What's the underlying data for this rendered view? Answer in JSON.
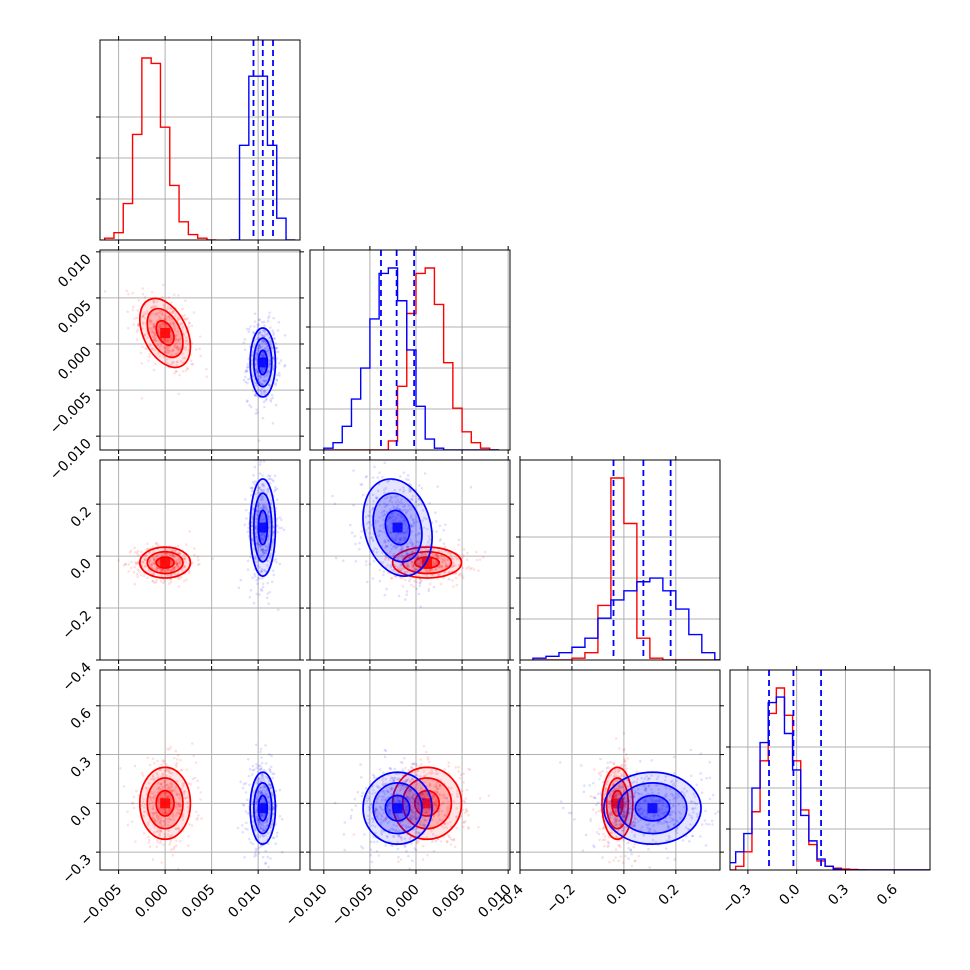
{
  "chart_data": {
    "type": "corner",
    "title": "",
    "colors": {
      "series_a": "#ff0000",
      "series_b": "#0000ff",
      "grid": "#b0b0b0",
      "quantile_line": "#0000ff"
    },
    "series": [
      {
        "name": "red",
        "color": "#ff0000"
      },
      {
        "name": "blue",
        "color": "#0000ff"
      }
    ],
    "parameters": [
      {
        "name": "param_0",
        "range": [
          -0.007,
          0.0145
        ],
        "ticks": [
          -0.005,
          0.0,
          0.005,
          0.01
        ],
        "tick_labels": [
          "−0.005",
          "0.000",
          "0.005",
          "0.010"
        ],
        "hist_bins": [
          -0.006,
          -0.005,
          -0.004,
          -0.003,
          -0.002,
          -0.001,
          0.0,
          0.001,
          0.002,
          0.003,
          0.004,
          0.005
        ],
        "hist_red": [
          0.01,
          0.04,
          0.2,
          0.58,
          1.0,
          0.97,
          0.62,
          0.3,
          0.1,
          0.03,
          0.01,
          0.0
        ],
        "hist_blue_bins": [
          0.0075,
          0.0085,
          0.0095,
          0.0105,
          0.0115,
          0.0125,
          0.0135
        ],
        "hist_blue": [
          0.0,
          0.52,
          0.9,
          0.9,
          0.52,
          0.12,
          0.0
        ],
        "quantiles": [
          0.0095,
          0.0105,
          0.0116
        ]
      },
      {
        "name": "param_1",
        "range": [
          -0.0115,
          0.0102
        ],
        "ticks": [
          -0.01,
          -0.005,
          0.0,
          0.005,
          0.01
        ],
        "tick_labels": [
          "−0.010",
          "−0.005",
          "0.000",
          "0.005",
          "0.010"
        ],
        "hist_bins": [
          -0.0095,
          -0.0085,
          -0.0075,
          -0.0065,
          -0.0055,
          -0.0045,
          -0.0035,
          -0.0025,
          -0.0015,
          -0.0005,
          0.0005,
          0.0015,
          0.0025,
          0.0035,
          0.0045,
          0.0055,
          0.0065,
          0.0075,
          0.0085
        ],
        "hist_red": [
          0.0,
          0.0,
          0.0,
          0.0,
          0.0,
          0.0,
          0.0,
          0.05,
          0.35,
          0.75,
          0.97,
          1.0,
          0.8,
          0.48,
          0.23,
          0.1,
          0.04,
          0.01,
          0.0
        ],
        "hist_blue": [
          0.01,
          0.04,
          0.13,
          0.28,
          0.45,
          0.72,
          0.97,
          1.0,
          0.82,
          0.55,
          0.24,
          0.06,
          0.01,
          0.0,
          0.0,
          0.0,
          0.0,
          0.0,
          0.0
        ],
        "quantiles": [
          -0.0038,
          -0.0021,
          -0.0002
        ]
      },
      {
        "name": "param_2",
        "range": [
          -0.4,
          0.37
        ],
        "ticks": [
          -0.4,
          -0.2,
          0.0,
          0.2
        ],
        "tick_labels": [
          "−0.4",
          "−0.2",
          "0.0",
          "0.2"
        ],
        "hist_bins": [
          -0.325,
          -0.275,
          -0.225,
          -0.175,
          -0.125,
          -0.075,
          -0.025,
          0.025,
          0.075,
          0.125,
          0.175,
          0.225,
          0.275,
          0.325,
          0.375
        ],
        "hist_red": [
          0.0,
          0.0,
          0.0,
          0.01,
          0.04,
          0.3,
          1.0,
          0.75,
          0.12,
          0.01,
          0.0,
          0.0,
          0.0,
          0.0,
          0.0
        ],
        "hist_blue": [
          0.01,
          0.02,
          0.04,
          0.07,
          0.12,
          0.23,
          0.33,
          0.38,
          0.43,
          0.45,
          0.38,
          0.28,
          0.14,
          0.04,
          0.0
        ],
        "quantiles": [
          -0.04,
          0.075,
          0.18
        ]
      },
      {
        "name": "param_3",
        "range": [
          -0.41,
          0.82
        ],
        "ticks": [
          -0.3,
          0.0,
          0.3,
          0.6
        ],
        "tick_labels": [
          "−0.3",
          "0.0",
          "0.3",
          "0.6"
        ],
        "hist_bins": [
          -0.4,
          -0.35,
          -0.3,
          -0.25,
          -0.2,
          -0.15,
          -0.1,
          -0.05,
          0.0,
          0.05,
          0.1,
          0.15,
          0.2,
          0.25,
          0.3,
          0.35,
          0.4,
          0.45,
          0.5,
          0.55,
          0.6,
          0.65,
          0.7,
          0.75,
          0.8
        ],
        "hist_red": [
          0.0,
          0.02,
          0.1,
          0.32,
          0.6,
          0.86,
          1.0,
          0.85,
          0.6,
          0.33,
          0.14,
          0.05,
          0.02,
          0.01,
          0.005,
          0.003,
          0.001,
          0.0,
          0.0,
          0.0,
          0.0,
          0.0,
          0.0,
          0.0,
          0.0
        ],
        "hist_blue": [
          0.04,
          0.1,
          0.2,
          0.45,
          0.7,
          0.92,
          0.95,
          0.75,
          0.55,
          0.3,
          0.16,
          0.06,
          0.02,
          0.005,
          0.0,
          0.0,
          0.0,
          0.0,
          0.0,
          0.0,
          0.0,
          0.0,
          0.0,
          0.0,
          0.0
        ],
        "quantiles": [
          -0.17,
          -0.02,
          0.15
        ]
      }
    ],
    "gaussians": {
      "red": {
        "mean": [
          0.0,
          0.0012,
          -0.025,
          0.0
        ],
        "std": [
          0.0016,
          0.0022,
          0.035,
          0.13
        ],
        "corr": [
          [
            1,
            -0.4,
            0,
            0
          ],
          [
            -0.4,
            1,
            0,
            0
          ],
          [
            0,
            0,
            1,
            0
          ],
          [
            0,
            0,
            0,
            1
          ]
        ]
      },
      "blue": {
        "mean": [
          0.0105,
          -0.002,
          0.11,
          -0.03
        ],
        "std": [
          0.0008,
          0.0022,
          0.11,
          0.13
        ],
        "corr": [
          [
            1,
            0,
            0,
            0
          ],
          [
            0,
            1,
            -0.2,
            0
          ],
          [
            0,
            -0.2,
            1,
            0
          ],
          [
            0,
            0,
            0,
            1
          ]
        ]
      }
    },
    "contour_levels_sigma": [
      0.6,
      1.2,
      1.7
    ],
    "grid": true
  }
}
